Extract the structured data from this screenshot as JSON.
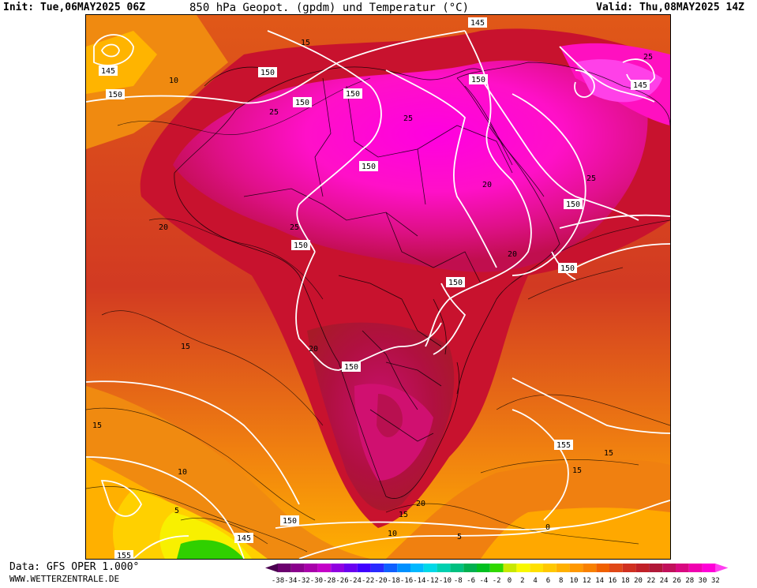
{
  "header": {
    "init": "Init: Tue,06MAY2025 06Z",
    "title": "850 hPa Geopot. (gpdm) und Temperatur (°C)",
    "valid": "Valid: Thu,08MAY2025 14Z"
  },
  "footer": {
    "data": "Data: GFS OPER 1.000°",
    "site": "WWW.WETTERZENTRALE.DE"
  },
  "map": {
    "geopotential_labels": [
      "145",
      "150",
      "150",
      "150",
      "150",
      "145",
      "150",
      "150",
      "150",
      "150",
      "150",
      "155",
      "150",
      "150",
      "145",
      "155",
      "150",
      "145"
    ],
    "temperature_labels": [
      "15",
      "10",
      "25",
      "25",
      "25",
      "25",
      "20",
      "20",
      "25",
      "20",
      "15",
      "20",
      "15",
      "15",
      "10",
      "5",
      "5",
      "20",
      "15",
      "10",
      "0",
      "15"
    ]
  },
  "legend": {
    "ticks": [
      "-38",
      "-34",
      "-32",
      "-30",
      "-28",
      "-26",
      "-24",
      "-22",
      "-20",
      "-18",
      "-16",
      "-14",
      "-12",
      "-10",
      "-8",
      "-6",
      "-4",
      "-2",
      "0",
      "2",
      "4",
      "6",
      "8",
      "10",
      "12",
      "14",
      "16",
      "18",
      "20",
      "22",
      "24",
      "26",
      "28",
      "30",
      "32"
    ],
    "colors": [
      "#4a0050",
      "#6b006e",
      "#8a008c",
      "#a800aa",
      "#c400c8",
      "#9000e0",
      "#6a00f0",
      "#4000ff",
      "#2a2aff",
      "#1060ff",
      "#0090ff",
      "#00b8ff",
      "#00d8e8",
      "#00d0b0",
      "#00c080",
      "#00b050",
      "#00c020",
      "#30d800",
      "#c8e800",
      "#f8f800",
      "#ffe000",
      "#ffc800",
      "#ffb000",
      "#ff9800",
      "#f88000",
      "#f06000",
      "#e04818",
      "#d03020",
      "#c02028",
      "#b01838",
      "#c0105a",
      "#d80880",
      "#f000b0",
      "#ff00d8",
      "#ff40f0"
    ]
  }
}
